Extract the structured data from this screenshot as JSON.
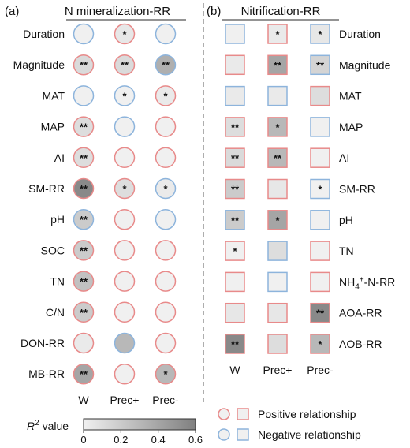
{
  "chart_data": [
    {
      "type": "heatmap",
      "panel_label": "(a)",
      "title": "N mineralization-RR",
      "marker": "circle",
      "columns": [
        "W",
        "Prec+",
        "Prec-"
      ],
      "rows": [
        "Duration",
        "Magnitude",
        "MAT",
        "MAP",
        "AI",
        "SM-RR",
        "pH",
        "SOC",
        "TN",
        "C/N",
        "DON-RR",
        "MB-RR"
      ],
      "r2": [
        [
          0.0,
          0.05,
          0.0
        ],
        [
          0.12,
          0.12,
          0.35
        ],
        [
          0.0,
          0.0,
          0.03
        ],
        [
          0.1,
          0.0,
          0.0
        ],
        [
          0.1,
          0.0,
          0.0
        ],
        [
          0.55,
          0.1,
          0.03
        ],
        [
          0.2,
          0.0,
          0.0
        ],
        [
          0.2,
          0.0,
          0.0
        ],
        [
          0.25,
          0.0,
          0.0
        ],
        [
          0.2,
          0.0,
          0.0
        ],
        [
          0.03,
          0.3,
          0.0
        ],
        [
          0.4,
          0.0,
          0.3
        ]
      ],
      "relationship": [
        [
          "negative",
          "positive",
          "negative"
        ],
        [
          "positive",
          "positive",
          "negative"
        ],
        [
          "negative",
          "negative",
          "positive"
        ],
        [
          "positive",
          "negative",
          "positive"
        ],
        [
          "positive",
          "positive",
          "positive"
        ],
        [
          "positive",
          "positive",
          "negative"
        ],
        [
          "negative",
          "positive",
          "negative"
        ],
        [
          "positive",
          "positive",
          "positive"
        ],
        [
          "positive",
          "positive",
          "positive"
        ],
        [
          "positive",
          "positive",
          "positive"
        ],
        [
          "positive",
          "negative",
          "positive"
        ],
        [
          "positive",
          "positive",
          "positive"
        ]
      ],
      "significance": [
        [
          "",
          "*",
          ""
        ],
        [
          "**",
          "**",
          "**"
        ],
        [
          "",
          "*",
          "*"
        ],
        [
          "**",
          "",
          ""
        ],
        [
          "**",
          "",
          ""
        ],
        [
          "**",
          "*",
          "*"
        ],
        [
          "**",
          "",
          ""
        ],
        [
          "**",
          "",
          ""
        ],
        [
          "**",
          "",
          ""
        ],
        [
          "**",
          "",
          ""
        ],
        [
          "",
          "",
          ""
        ],
        [
          "**",
          "",
          "*"
        ]
      ]
    },
    {
      "type": "heatmap",
      "panel_label": "(b)",
      "title": "Nitrification-RR",
      "marker": "square",
      "columns": [
        "W",
        "Prec+",
        "Prec-"
      ],
      "rows": [
        "Duration",
        "Magnitude",
        "MAT",
        "MAP",
        "AI",
        "SM-RR",
        "pH",
        "TN",
        "NH4+-N-RR",
        "AOA-RR",
        "AOB-RR"
      ],
      "r2": [
        [
          0.0,
          0.03,
          0.05
        ],
        [
          0.03,
          0.4,
          0.15
        ],
        [
          0.03,
          0.03,
          0.1
        ],
        [
          0.1,
          0.3,
          0.0
        ],
        [
          0.12,
          0.3,
          0.0
        ],
        [
          0.2,
          0.05,
          0.0
        ],
        [
          0.2,
          0.4,
          0.0
        ],
        [
          0.0,
          0.1,
          0.0
        ],
        [
          0.0,
          0.0,
          0.0
        ],
        [
          0.05,
          0.05,
          0.55
        ],
        [
          0.55,
          0.1,
          0.3
        ]
      ],
      "relationship": [
        [
          "negative",
          "positive",
          "negative"
        ],
        [
          "positive",
          "positive",
          "negative"
        ],
        [
          "negative",
          "negative",
          "positive"
        ],
        [
          "positive",
          "positive",
          "negative"
        ],
        [
          "positive",
          "positive",
          "positive"
        ],
        [
          "positive",
          "positive",
          "negative"
        ],
        [
          "negative",
          "positive",
          "negative"
        ],
        [
          "positive",
          "negative",
          "positive"
        ],
        [
          "positive",
          "negative",
          "positive"
        ],
        [
          "positive",
          "positive",
          "positive"
        ],
        [
          "positive",
          "positive",
          "positive"
        ]
      ],
      "significance": [
        [
          "",
          "*",
          "*"
        ],
        [
          "",
          "**",
          "**"
        ],
        [
          "",
          "",
          ""
        ],
        [
          "**",
          "*",
          ""
        ],
        [
          "**",
          "**",
          ""
        ],
        [
          "**",
          "",
          "*"
        ],
        [
          "**",
          "*",
          ""
        ],
        [
          "*",
          "",
          ""
        ],
        [
          "",
          "",
          ""
        ],
        [
          "",
          "",
          "**"
        ],
        [
          "**",
          "",
          "*"
        ]
      ]
    }
  ],
  "colorbar": {
    "label_prefix": "R",
    "label_sup": "2",
    "label_suffix": " value",
    "range": [
      0,
      0.6
    ],
    "ticks": [
      "0",
      "0.2",
      "0.4",
      "0.6"
    ],
    "tick_values": [
      0,
      0.2,
      0.4,
      0.6
    ]
  },
  "legend": {
    "placement": "bottom-right",
    "items": [
      {
        "relationship": "positive",
        "label": "Positive relationship",
        "color": "#e88a8a"
      },
      {
        "relationship": "negative",
        "label": "Negative relationship",
        "color": "#8db4dc"
      }
    ]
  },
  "colors": {
    "positive": "#e88a8a",
    "negative": "#8db4dc",
    "fill_low": "#f0f0f0",
    "fill_high": "#808080"
  }
}
